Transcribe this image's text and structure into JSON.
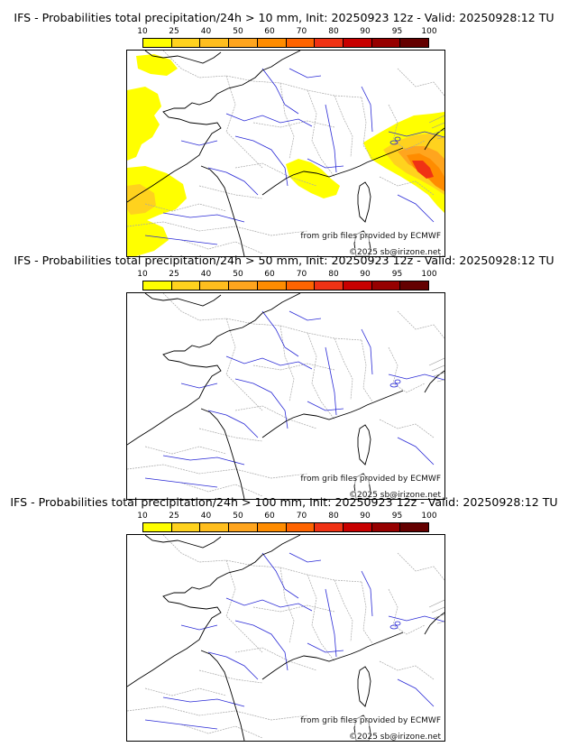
{
  "scale": {
    "ticks": [
      "10",
      "25",
      "40",
      "50",
      "60",
      "70",
      "80",
      "90",
      "95",
      "100"
    ],
    "colors": [
      "#ffff00",
      "#ffd21e",
      "#ffbe1e",
      "#ffa51e",
      "#ff8c00",
      "#ff6400",
      "#f03214",
      "#c80000",
      "#960000",
      "#640000"
    ]
  },
  "panels": [
    {
      "title": "IFS - Probabilities total precipitation/24h > 10 mm, Init: 20250923 12z - Valid: 20250928:12 TU",
      "source_note": "from grib files provided by ECMWF",
      "copyright": "©2025 sb@irizone.net",
      "precip_coverage": "significant"
    },
    {
      "title": "IFS - Probabilities total precipitation/24h > 50 mm, Init: 20250923 12z - Valid: 20250928:12 TU",
      "source_note": "from grib files provided by ECMWF",
      "copyright": "©2025 sb@irizone.net",
      "precip_coverage": "none"
    },
    {
      "title": "IFS - Probabilities total precipitation/24h > 100 mm, Init: 20250923 12z - Valid: 20250928:12 TU",
      "source_note": "from grib files provided by ECMWF",
      "copyright": "©2025 sb@irizone.net",
      "precip_coverage": "none"
    }
  ]
}
